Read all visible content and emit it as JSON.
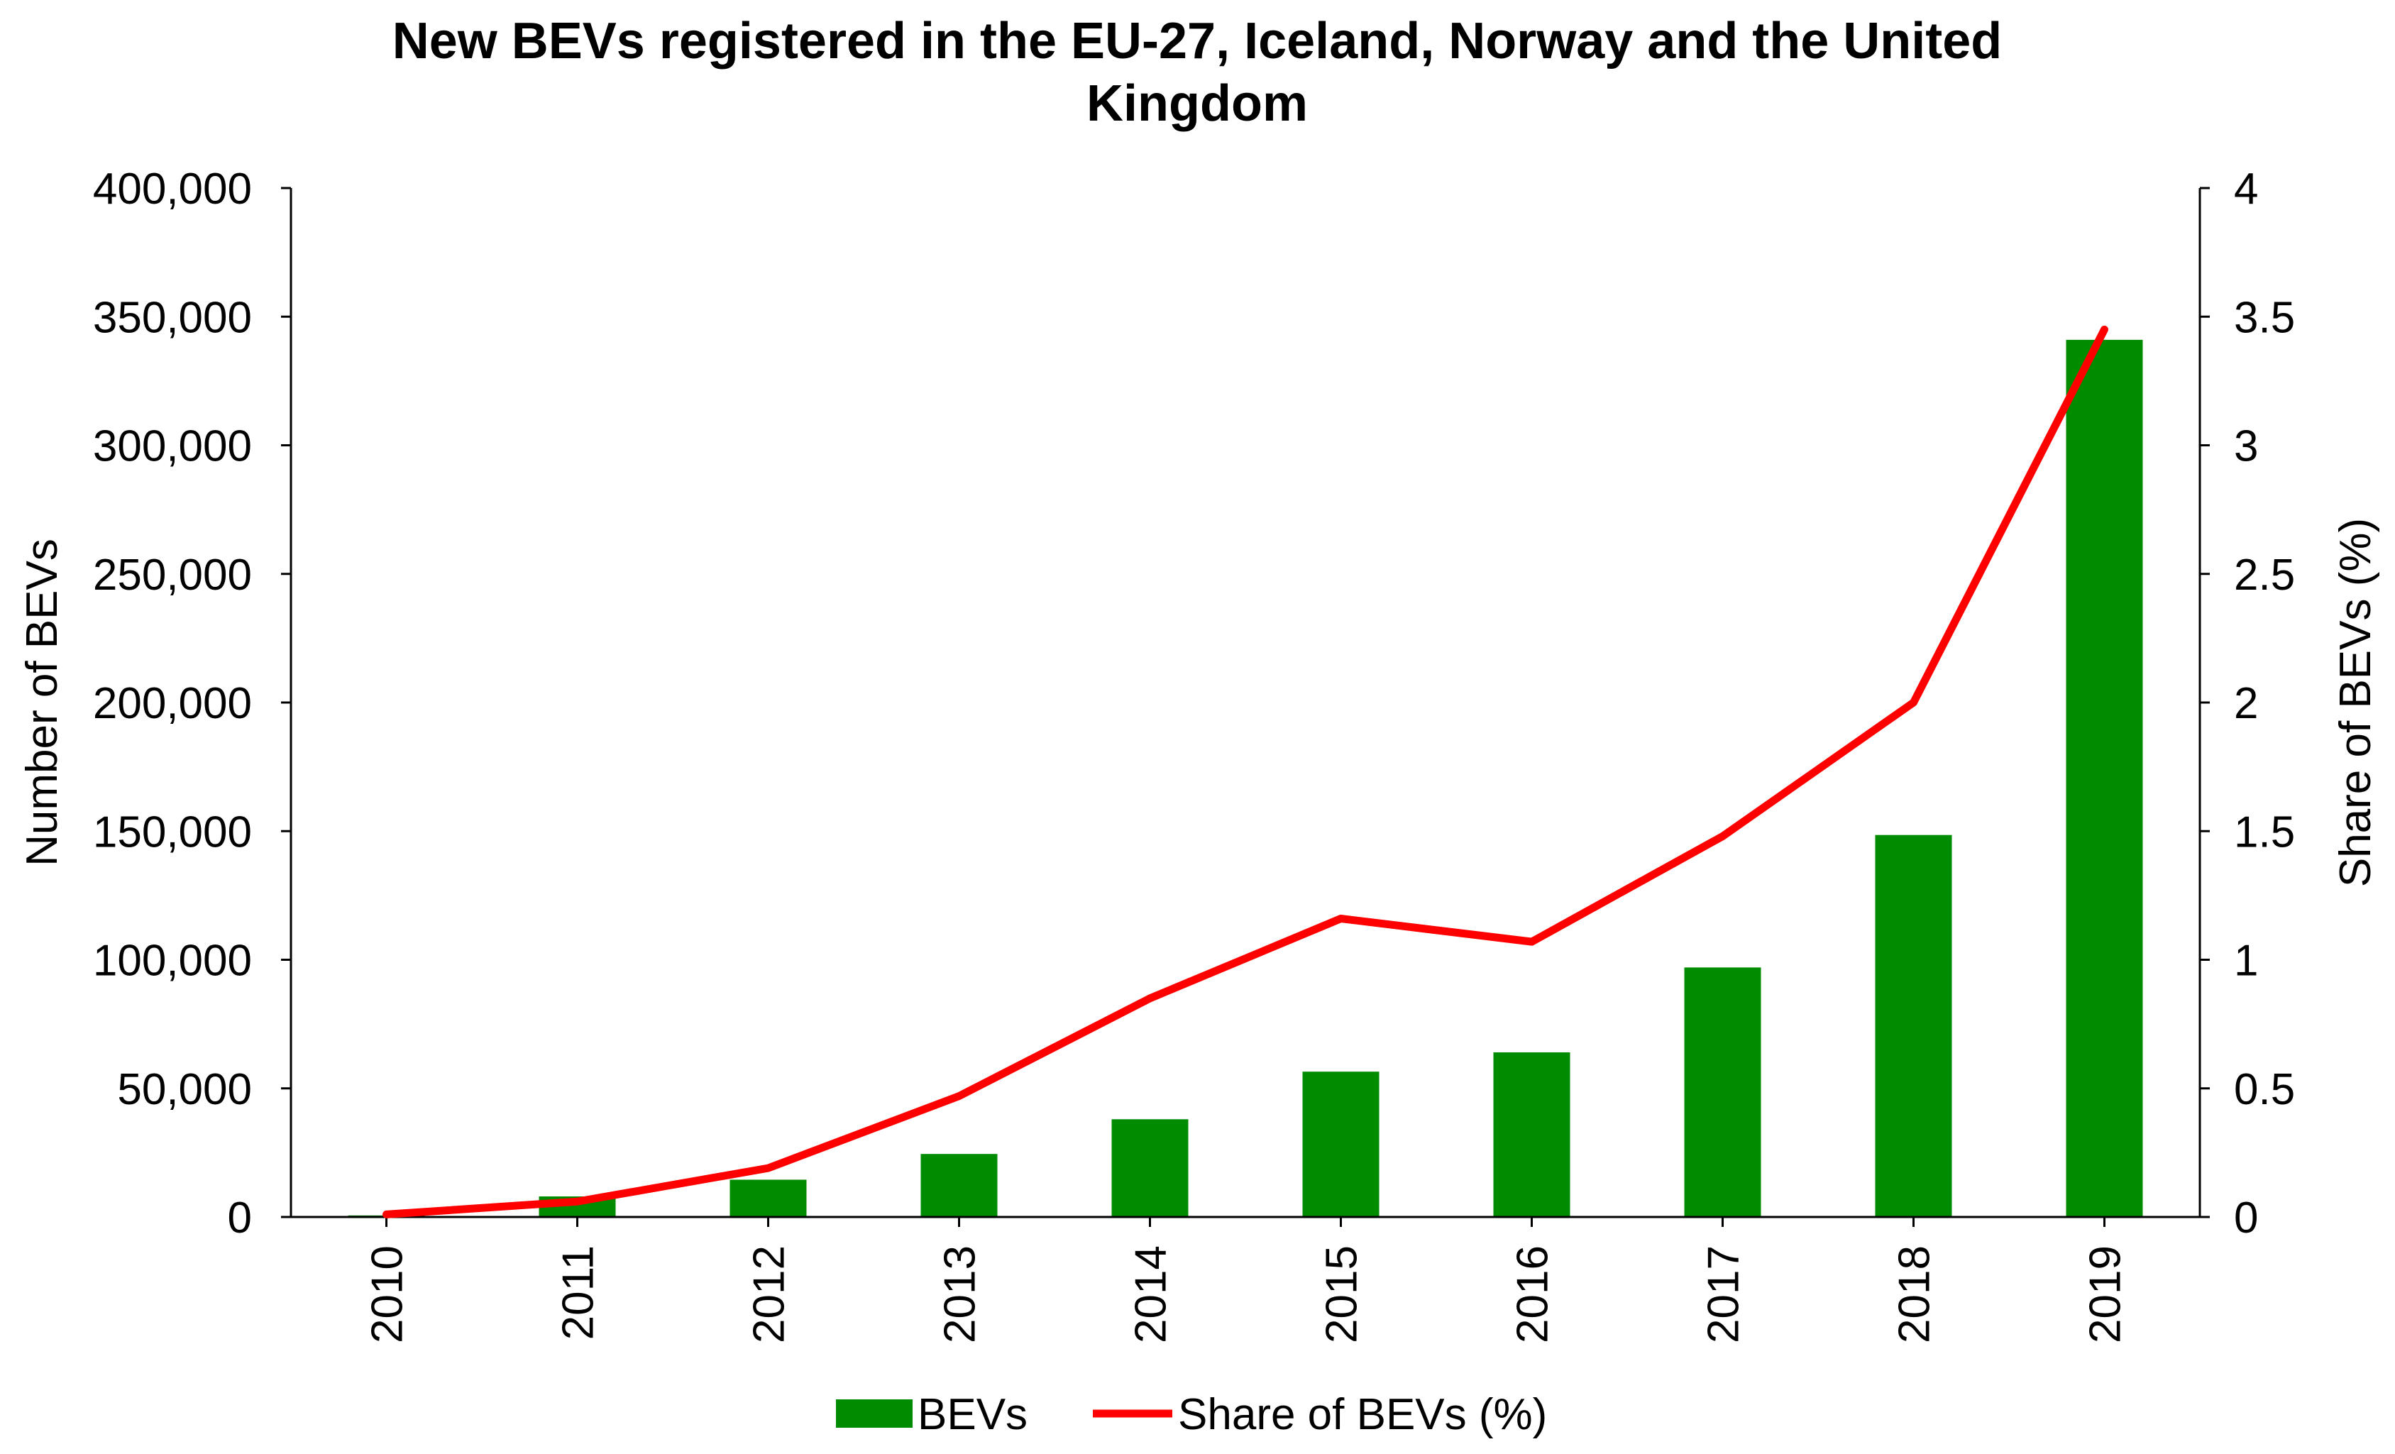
{
  "chart_data": {
    "type": "bar+line",
    "title_lines": [
      "New BEVs registered in the EU-27, Iceland, Norway and the United",
      "Kingdom"
    ],
    "categories": [
      "2010",
      "2011",
      "2012",
      "2013",
      "2014",
      "2015",
      "2016",
      "2017",
      "2018",
      "2019"
    ],
    "series": [
      {
        "name": "BEVs",
        "type": "bar",
        "axis": "left",
        "color": "#008C00",
        "values": [
          600,
          8000,
          14500,
          24500,
          38000,
          56500,
          64000,
          97000,
          148500,
          341000
        ]
      },
      {
        "name": "Share of BEVs (%)",
        "type": "line",
        "axis": "right",
        "color": "#FF0000",
        "values": [
          0.01,
          0.06,
          0.19,
          0.47,
          0.85,
          1.16,
          1.07,
          1.48,
          2.0,
          3.45
        ]
      }
    ],
    "left_axis": {
      "label": "Number of BEVs",
      "ylim": [
        0,
        400000
      ],
      "ticks": [
        "0",
        "50,000",
        "100,000",
        "150,000",
        "200,000",
        "250,000",
        "300,000",
        "350,000",
        "400,000"
      ]
    },
    "right_axis": {
      "label": "Share of BEVs (%)",
      "ylim": [
        0,
        4
      ],
      "ticks": [
        "0",
        "0.5",
        "1",
        "1.5",
        "2",
        "2.5",
        "3",
        "3.5",
        "4"
      ]
    },
    "legend": {
      "position": "bottom",
      "entries": [
        "BEVs",
        "Share of BEVs (%)"
      ]
    },
    "grid": false
  }
}
